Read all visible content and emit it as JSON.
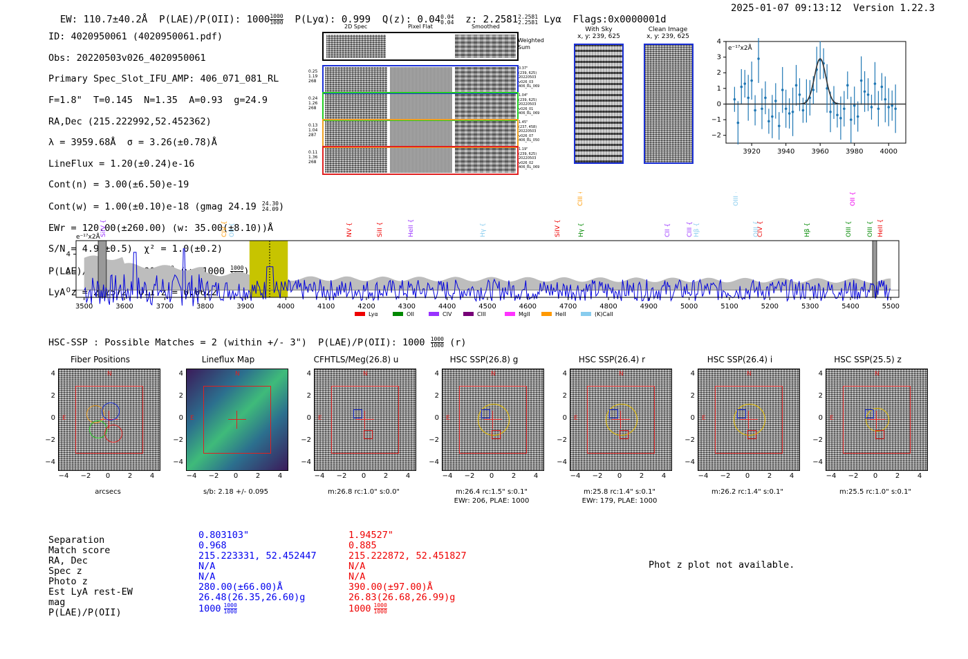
{
  "header": {
    "ew": "EW: 110.7±40.2Å",
    "plae_label": "P(LAE)/P(OII): 1000",
    "plae_frac": [
      "1000",
      "1000"
    ],
    "plya": "P(Lyα): 0.999",
    "qz": "Q(z): 0.04",
    "qz_frac": [
      "0.04",
      "0.04"
    ],
    "z": "z: 2.2581",
    "z_frac": [
      "2.2581",
      "2.2581"
    ],
    "z_line": "Lyα",
    "flags": "Flags:0x0000001d",
    "timestamp": "2025-01-07 09:13:12",
    "version": "Version 1.22.3"
  },
  "info": {
    "id": "ID: 4020950061 (4020950061.pdf)",
    "obs": "Obs: 20220503v026_4020950061",
    "primary": "Primary Spec_Slot_IFU_AMP: 406_071_081_RL",
    "fwhm": "F=1.8\"  T=0.145  N=1.35  A=0.93  g=24.9",
    "radec": "RA,Dec (215.222992,52.452362)",
    "lambda": "λ = 3959.68Å  σ = 3.26(±0.78)Å",
    "lineflux": "LineFlux = 1.20(±0.24)e-16",
    "contn": "Cont(n) = 3.00(±6.50)e-19",
    "contw": "Cont(w) = 1.00(±0.10)e-18 (gmag 24.19",
    "contw_frac": [
      "24.30",
      "24.09"
    ],
    "contw_close": ")",
    "ewr": "EWr = 120.00(±260.00) (w: 35.00(±8.10))Å",
    "sn": "S/N = 4.9(±0.5)  χ² = 1.0(±0.2)",
    "plae": "P(LAE)/P(OII): 1000",
    "plae_frac": [
      "1000",
      "1000"
    ],
    "plae_w": "(w: 1000",
    "plae_w_frac": [
      "1000",
      "1000"
    ],
    "plae_w_close": ")",
    "lya": "LyA z = 2.2572  OII z = 0.0622"
  },
  "spec2d": {
    "col_headers": [
      "2D Spec",
      "Pixel Flat",
      "Smoothed"
    ],
    "weighted_label": "Weighted Sum",
    "rows": [
      {
        "left": [
          "0.25",
          "1.19",
          "268"
        ],
        "right": [
          "0.37\"",
          "(239, 625)",
          "20220503",
          "v026_03",
          "406_RL_069"
        ],
        "color": "#1a2fd6"
      },
      {
        "left": [
          "0.24",
          "1.26",
          "268"
        ],
        "right": [
          "1.04\"",
          "(239, 625)",
          "20220503",
          "v026_01",
          "406_RL_069"
        ],
        "color": "#22cc22"
      },
      {
        "left": [
          "0.13",
          "1.04",
          "287"
        ],
        "right": [
          "1.45\"",
          "(237, 458)",
          "20220503",
          "v026_07",
          "406_RL_050"
        ],
        "color": "#f0a020"
      },
      {
        "left": [
          "0.11",
          "1.36",
          "268"
        ],
        "right": [
          "1.19\"",
          "(239, 625)",
          "20220503",
          "v026_02",
          "406_RL_069"
        ],
        "color": "#e02020"
      }
    ]
  },
  "sky": {
    "with_sky_title": "With Sky",
    "with_sky_coords": "x, y: 239, 625",
    "clean_title": "Clean Image",
    "clean_coords": "x, y: 239, 625"
  },
  "zoom_plot": {
    "ylabel": "e⁻¹⁷x2Å",
    "xticks": [
      "3920",
      "3940",
      "3960",
      "3980",
      "4000"
    ],
    "yticks": [
      "4",
      "3",
      "2",
      "1",
      "0",
      "−1",
      "−2"
    ]
  },
  "full_spec": {
    "ylabel": "e⁻¹⁷x2Å",
    "xticks": [
      "3500",
      "3600",
      "3700",
      "3800",
      "3900",
      "4000",
      "4100",
      "4200",
      "4300",
      "4400",
      "4500",
      "4600",
      "4700",
      "4800",
      "4900",
      "5000",
      "5100",
      "5200",
      "5300",
      "5400",
      "5500"
    ],
    "yticks": [
      "4",
      "2",
      "0"
    ],
    "line_labels": [
      {
        "text": "SiIV",
        "color": "#9933ff"
      },
      {
        "text": "CIV",
        "color": "#ff9900"
      },
      {
        "text": "OII",
        "color": "#88ccee"
      },
      {
        "text": "NV",
        "color": "#ee0000"
      },
      {
        "text": "SiII",
        "color": "#ee0000"
      },
      {
        "text": "HeII",
        "color": "#9933ff"
      },
      {
        "text": "Hγ",
        "color": "#88ccee"
      },
      {
        "text": "SiIV",
        "color": "#ee0000"
      },
      {
        "text": "CIII",
        "color": "#ff9900"
      },
      {
        "text": "Hγ",
        "color": "#008800"
      },
      {
        "text": "CII",
        "color": "#9933ff"
      },
      {
        "text": "CIII",
        "color": "#9933ff"
      },
      {
        "text": "Hβ",
        "color": "#88ccee"
      },
      {
        "text": "OIII",
        "color": "#88ccee"
      },
      {
        "text": "OIII",
        "color": "#88ccee"
      },
      {
        "text": "CIV",
        "color": "#ee0000"
      },
      {
        "text": "Hβ",
        "color": "#008800"
      },
      {
        "text": "OIII",
        "color": "#008800"
      },
      {
        "text": "OII",
        "color": "#ee00ee"
      },
      {
        "text": "OIII",
        "color": "#008800"
      },
      {
        "text": "HeII",
        "color": "#ee0000"
      }
    ],
    "legend": [
      {
        "text": "Lyα",
        "color": "#ee0000"
      },
      {
        "text": "OII",
        "color": "#008800"
      },
      {
        "text": "CIV",
        "color": "#9933ff"
      },
      {
        "text": "CIII",
        "color": "#770077"
      },
      {
        "text": "MgII",
        "color": "#ff33ff"
      },
      {
        "text": "HeII",
        "color": "#ff9900"
      },
      {
        "text": "(K)CaII",
        "color": "#88ccee"
      }
    ]
  },
  "hsc": {
    "title": "HSC-SSP : Possible Matches = 2 (within +/- 3\")  P(LAE)/P(OII): 1000",
    "title_frac": [
      "1000",
      "1000"
    ],
    "title_suffix": "(r)"
  },
  "cutouts": [
    {
      "title": "Fiber Positions",
      "caption": "arcsecs",
      "caption2": ""
    },
    {
      "title": "Lineflux Map",
      "caption": "s/b: 2.18 +/- 0.095",
      "caption2": ""
    },
    {
      "title": "CFHTLS/Meg(26.8) u",
      "caption": "m:26.8 rc:1.0\"  s:0.0\"",
      "caption2": ""
    },
    {
      "title": "HSC SSP(26.8) g",
      "caption": "m:26.4 rc:1.5\"  s:0.1\"",
      "caption2": "EWr: 206, PLAE: 1000"
    },
    {
      "title": "HSC SSP(26.4) r",
      "caption": "m:25.8 rc:1.4\"  s:0.1\"",
      "caption2": "EWr: 179, PLAE: 1000"
    },
    {
      "title": "HSC SSP(26.4) i",
      "caption": "m:26.2 rc:1.4\"  s:0.1\"",
      "caption2": ""
    },
    {
      "title": "HSC SSP(25.5) z",
      "caption": "m:25.5 rc:1.0\"  s:0.1\"",
      "caption2": ""
    }
  ],
  "cutout_axis": {
    "yticks": [
      "4",
      "2",
      "0",
      "−2",
      "−4"
    ],
    "xticks": [
      "−4",
      "−2",
      "0",
      "2",
      "4"
    ],
    "north": "N",
    "east": "E"
  },
  "matches": {
    "labels": [
      "Separation",
      "Match score",
      "RA, Dec",
      "Spec z",
      "Photo z",
      "Est LyA rest-EW",
      "mag",
      "P(LAE)/P(OII)"
    ],
    "blue": [
      "0.803103\"",
      "0.968",
      "215.223331, 52.452447",
      "N/A",
      "N/A",
      "280.00(±66.00)Å",
      "26.48(26.35,26.60)g",
      "1000"
    ],
    "red": [
      "1.94527\"",
      "0.885",
      "215.222872, 52.451827",
      "N/A",
      "N/A",
      "390.00(±97.00)Å",
      "26.83(26.68,26.99)g",
      "1000"
    ],
    "plae_frac": [
      "1000",
      "1000"
    ]
  },
  "photz": "Phot z plot not available.",
  "chart_data": [
    {
      "type": "scatter",
      "title": "Zoomed line fit",
      "xlim": [
        3905,
        4010
      ],
      "ylim": [
        -2.5,
        4
      ],
      "x": [
        3910,
        3912,
        3914,
        3916,
        3918,
        3920,
        3922,
        3924,
        3926,
        3928,
        3930,
        3932,
        3934,
        3936,
        3938,
        3940,
        3942,
        3944,
        3946,
        3948,
        3950,
        3952,
        3954,
        3956,
        3958,
        3960,
        3962,
        3964,
        3966,
        3968,
        3970,
        3972,
        3974,
        3976,
        3978,
        3980,
        3982,
        3984,
        3986,
        3988,
        3990,
        3992,
        3994,
        3996,
        3998,
        4000,
        4002,
        4004
      ],
      "y": [
        0.3,
        -1.2,
        1.1,
        1.3,
        0.4,
        1.5,
        -0.4,
        2.9,
        -0.3,
        0.4,
        -1.1,
        -0.8,
        0.2,
        -1.4,
        0.9,
        -0.3,
        -0.6,
        -0.5,
        1.2,
        0.6,
        -0.4,
        0.2,
        0.4,
        0.9,
        2.2,
        2.8,
        2.6,
        1.0,
        -0.5,
        0.1,
        -0.7,
        -0.9,
        -0.3,
        1.2,
        -1.0,
        -0.1,
        -0.8,
        1.5,
        0.8,
        0.6,
        -0.2,
        1.3,
        -0.3,
        1.1,
        0.3,
        -0.2,
        -0.1,
        -0.3
      ],
      "fit_peak": 2.9,
      "fit_center": 3960,
      "fit_sigma": 3.3
    },
    {
      "type": "line",
      "title": "Full spectrum",
      "xlim": [
        3480,
        5520
      ],
      "ylim": [
        -0.8,
        5.5
      ],
      "highlight_range": [
        3910,
        4005
      ],
      "line_wavelength": 3960
    }
  ]
}
